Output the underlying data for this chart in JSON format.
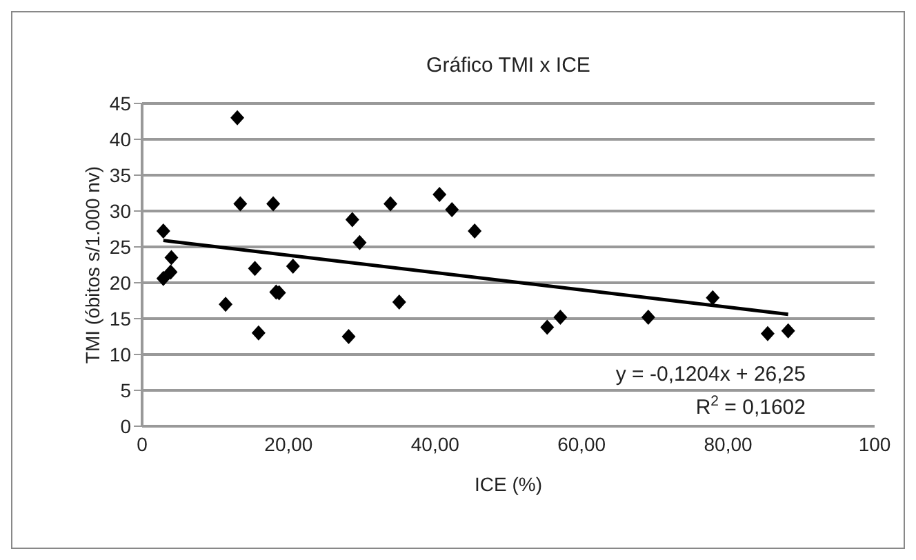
{
  "chart_data": {
    "type": "scatter",
    "title": "Gráfico TMI x ICE",
    "xlabel": "ICE (%)",
    "ylabel": "TMI (óbitos s/1.000 nv)",
    "series": [
      {
        "color": "#000000",
        "marker": "diamond",
        "x": [
          2.9,
          4.0,
          3.9,
          2.9,
          13.0,
          13.4,
          11.4,
          15.4,
          15.9,
          17.9,
          18.3,
          18.7,
          20.6,
          28.2,
          28.7,
          29.7,
          35.1,
          33.9,
          40.6,
          42.3,
          45.4,
          55.3,
          57.1,
          69.1,
          77.9,
          85.4,
          88.2
        ],
        "values": [
          27.2,
          23.5,
          21.5,
          20.6,
          43,
          31,
          17,
          22,
          13,
          31,
          18.7,
          18.6,
          22.3,
          12.5,
          28.8,
          25.6,
          17.3,
          31,
          32.3,
          30.2,
          27.2,
          13.8,
          15.2,
          15.2,
          17.9,
          12.9,
          13.3
        ]
      },
      {
        "type": "line",
        "color": "#000000",
        "marker": "none",
        "line_style": "solid",
        "x": [
          2.9,
          88.2
        ],
        "values": [
          25.9,
          15.6
        ]
      }
    ],
    "xlim": [
      0,
      100
    ],
    "xticks": [
      0,
      {
        "value": 20,
        "label": "20,00"
      },
      {
        "value": 40,
        "label": "40,00"
      },
      {
        "value": 60,
        "label": "60,00"
      },
      {
        "value": 80,
        "label": "80,00"
      },
      100
    ],
    "ylim": [
      0,
      45
    ],
    "yticks": [
      0,
      5,
      10,
      15,
      20,
      25,
      30,
      35,
      40,
      45
    ],
    "grid": "y",
    "legend": false,
    "annotations": [
      "y = -0,1204x + 26,25",
      "R$^{2}$ = 0,1602"
    ]
  }
}
